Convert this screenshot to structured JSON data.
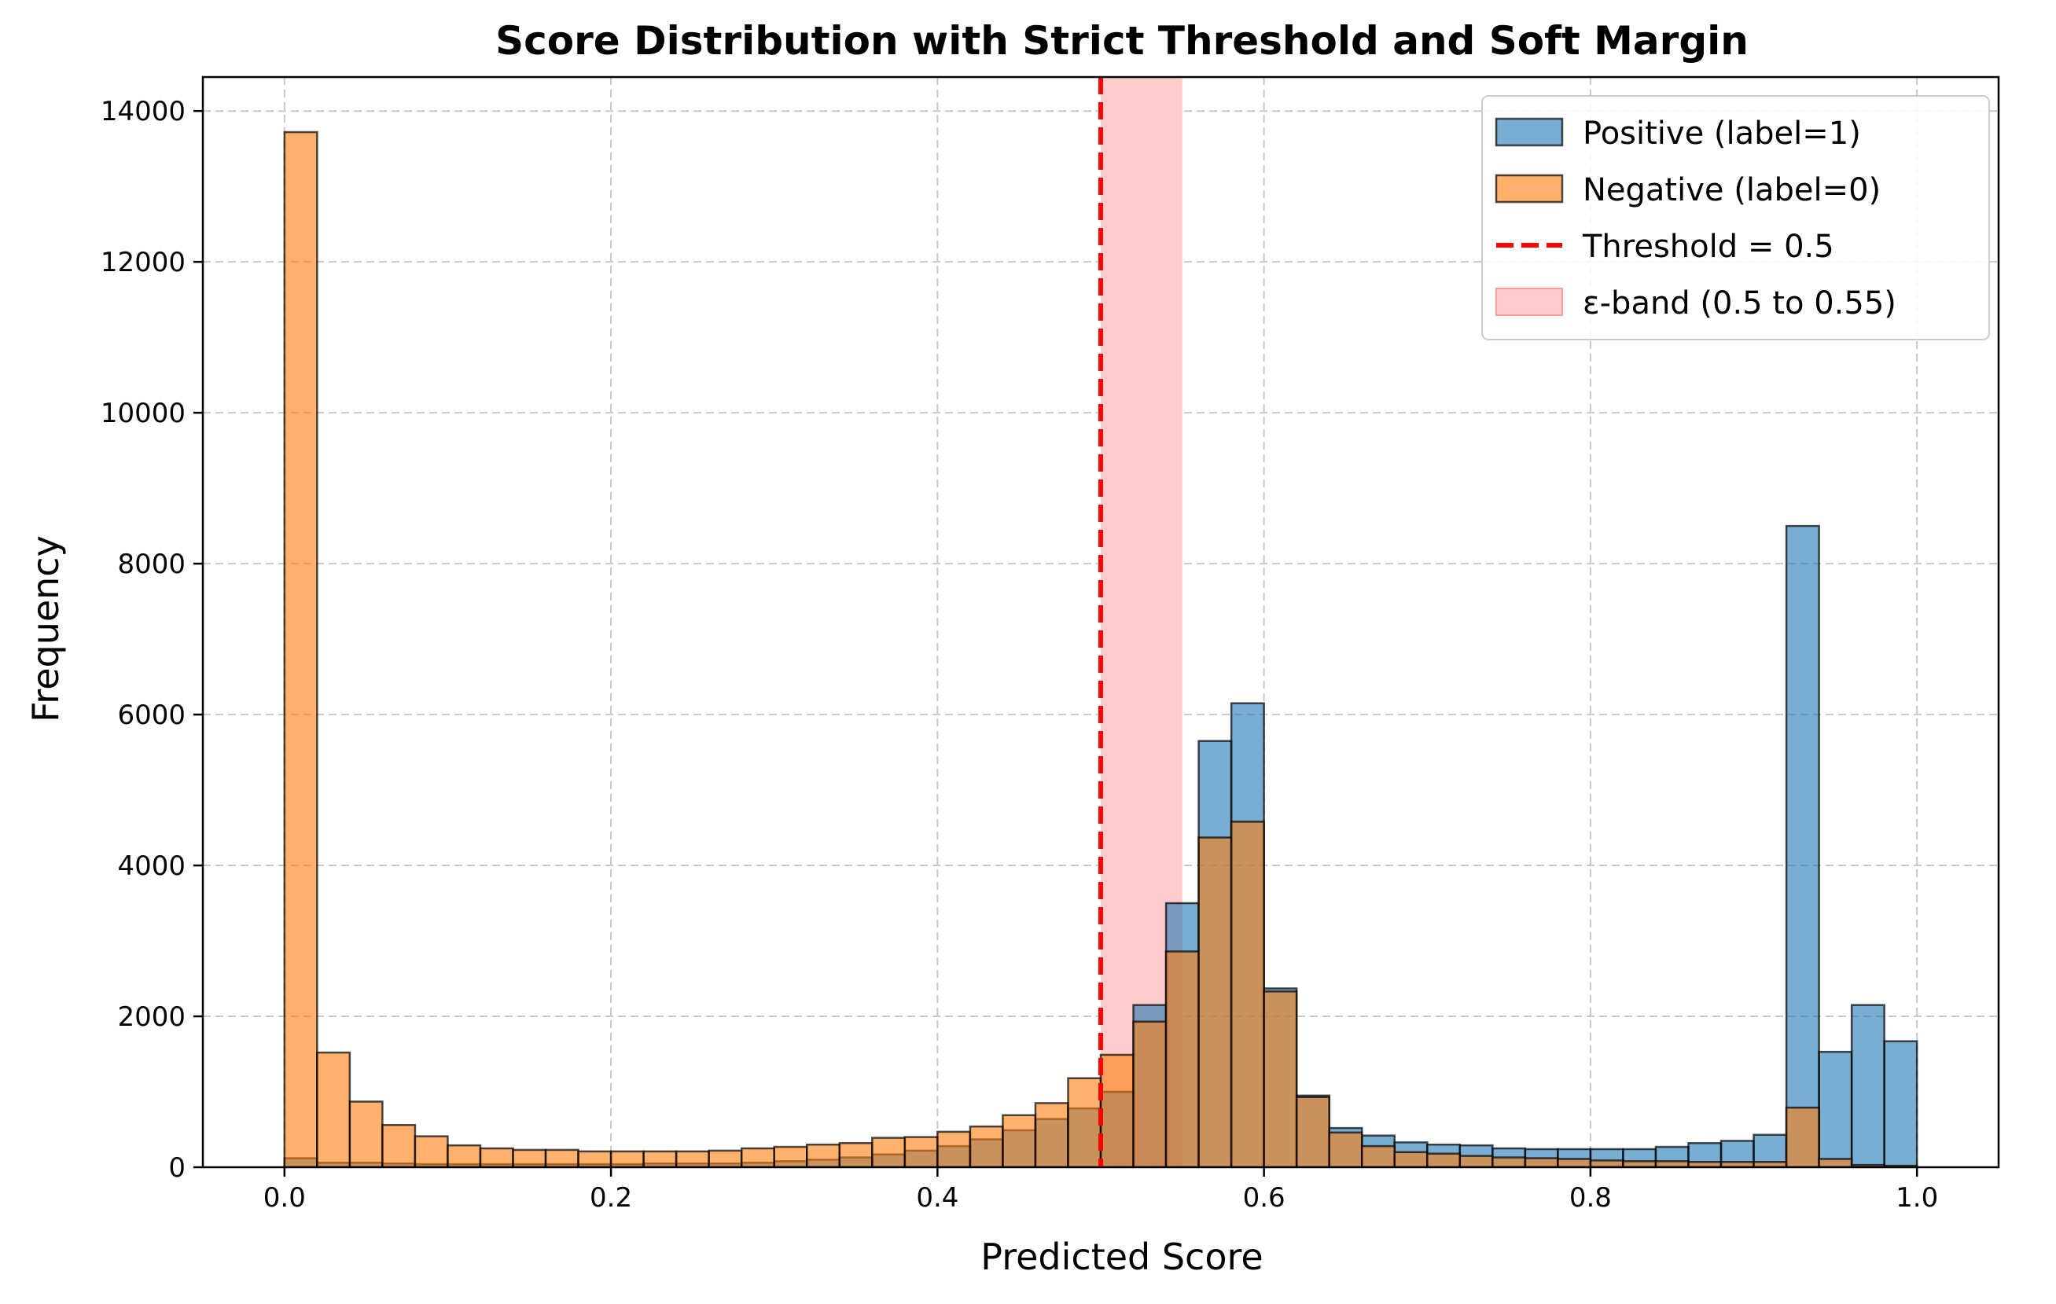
{
  "chart_data": {
    "type": "bar",
    "title": "Score Distribution with Strict Threshold and Soft Margin",
    "xlabel": "Predicted Score",
    "ylabel": "Frequency",
    "xlim": [
      -0.05,
      1.05
    ],
    "ylim": [
      0,
      14450
    ],
    "xticks": [
      0.0,
      0.2,
      0.4,
      0.6,
      0.8,
      1.0
    ],
    "xtick_labels": [
      "0.0",
      "0.2",
      "0.4",
      "0.6",
      "0.8",
      "1.0"
    ],
    "yticks": [
      0,
      2000,
      4000,
      6000,
      8000,
      10000,
      12000,
      14000
    ],
    "ytick_labels": [
      "0",
      "2000",
      "4000",
      "6000",
      "8000",
      "10000",
      "12000",
      "14000"
    ],
    "grid": true,
    "legend_position": "top-right",
    "bin_edges_start": 0.0,
    "bin_width": 0.02,
    "series": [
      {
        "name": "Positive (label=1)",
        "color": "#1f77b4",
        "opacity": 0.6,
        "values": [
          120,
          60,
          60,
          50,
          40,
          40,
          40,
          40,
          40,
          40,
          40,
          50,
          50,
          50,
          60,
          80,
          100,
          130,
          170,
          220,
          280,
          370,
          490,
          640,
          780,
          1000,
          2150,
          3500,
          5650,
          6150,
          2370,
          950,
          520,
          420,
          330,
          300,
          290,
          250,
          240,
          240,
          240,
          240,
          270,
          320,
          350,
          430,
          8500,
          1530,
          2150,
          1670
        ]
      },
      {
        "name": "Negative (label=0)",
        "color": "#ff7f0e",
        "opacity": 0.6,
        "values": [
          13720,
          1520,
          870,
          560,
          410,
          290,
          250,
          230,
          230,
          210,
          210,
          210,
          210,
          220,
          250,
          270,
          300,
          320,
          390,
          400,
          470,
          540,
          690,
          850,
          1180,
          1490,
          1930,
          2860,
          4370,
          4580,
          2330,
          930,
          460,
          280,
          200,
          180,
          150,
          130,
          120,
          110,
          90,
          80,
          80,
          70,
          70,
          70,
          790,
          110,
          30,
          20
        ]
      }
    ],
    "threshold": {
      "label": "Threshold = 0.5",
      "value": 0.5,
      "color": "#ff0000"
    },
    "band": {
      "label": "ε-band (0.5 to 0.55)",
      "from": 0.5,
      "to": 0.55,
      "color": "#ffcccc"
    }
  }
}
